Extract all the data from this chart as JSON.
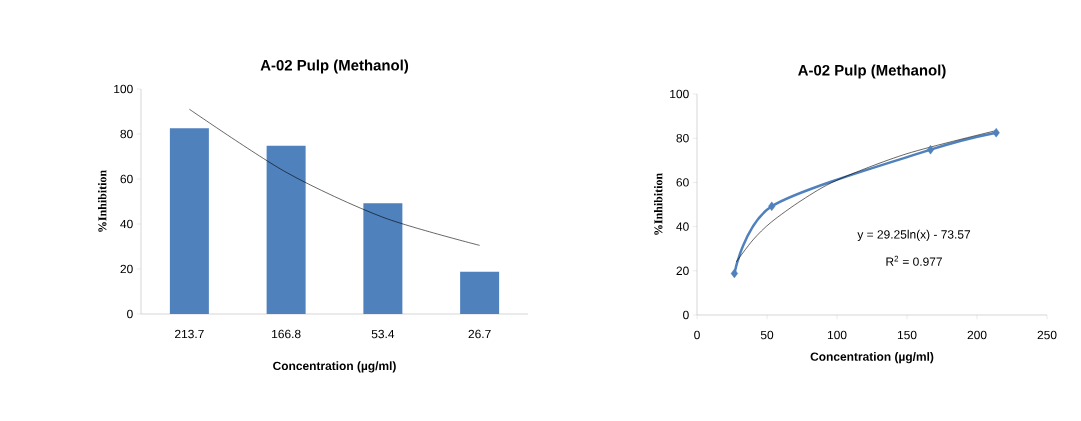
{
  "chart_data": [
    {
      "type": "bar",
      "title": "A-02 Pulp (Methanol)",
      "xlabel": "Concentration (µg/ml)",
      "ylabel": "%Inhibition",
      "categories": [
        "213.7",
        "166.8",
        "53.4",
        "26.7"
      ],
      "series": [
        {
          "color": "#4f81bd",
          "values": [
            82.5,
            74.8,
            49.2,
            18.8
          ]
        },
        {
          "type": "line",
          "color": "#000000",
          "values": [
            91,
            63,
            43,
            30.5
          ]
        }
      ],
      "ylim": [
        0,
        100
      ],
      "yticks": [
        0,
        20,
        40,
        60,
        80,
        100
      ]
    },
    {
      "type": "line",
      "title": "A-02 Pulp (Methanol)",
      "xlabel": "Concentration (µg/ml)",
      "ylabel": "%Inhibition",
      "series": [
        {
          "color": "#4f81bd",
          "marker": "diamond",
          "x": [
            26.7,
            53.4,
            166.8,
            213.7
          ],
          "values": [
            18.8,
            49.2,
            74.8,
            82.5
          ]
        },
        {
          "color": "#000000",
          "x": [
            28,
            40,
            53,
            75,
            100,
            150,
            214
          ],
          "values": [
            24,
            34,
            42,
            52,
            61,
            73,
            83.5
          ]
        }
      ],
      "annotations": [
        "y = 29.25ln(x) - 73.57",
        "R$^{2}$ = 0.977"
      ],
      "xlim": [
        0,
        250
      ],
      "xticks": [
        0,
        50,
        100,
        150,
        200,
        250
      ],
      "ylim": [
        0,
        100
      ],
      "yticks": [
        0,
        20,
        40,
        60,
        80,
        100
      ]
    }
  ]
}
